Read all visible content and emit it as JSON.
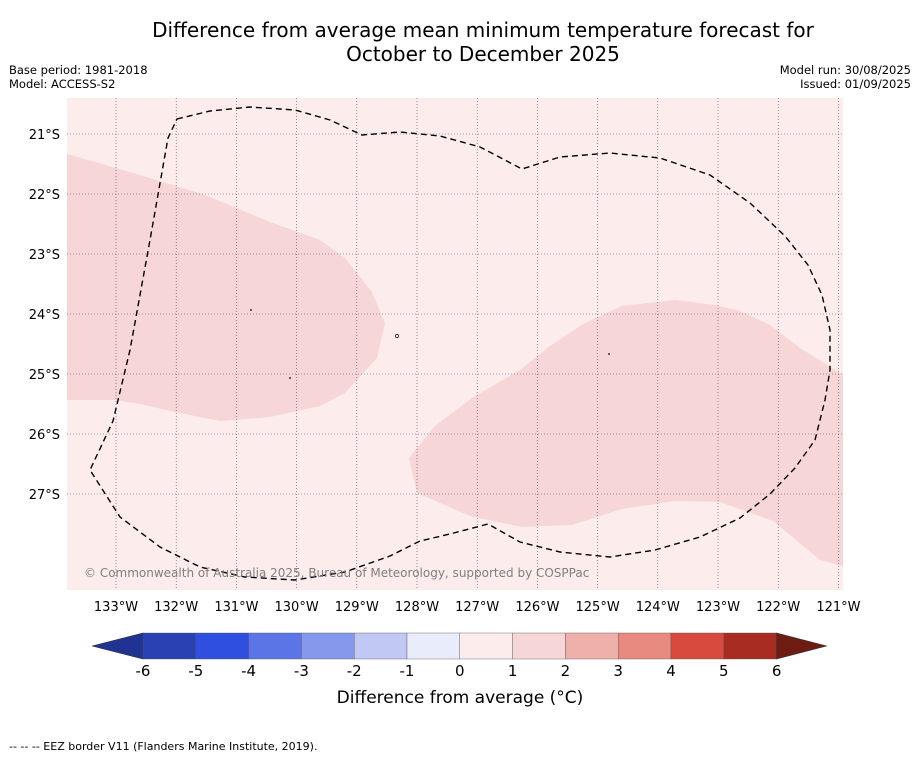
{
  "header": {
    "title_line1": "Difference from average mean minimum temperature forecast for",
    "title_line2": "October to December 2025",
    "base_period": "Base period: 1981-2018",
    "model": "Model: ACCESS-S2",
    "model_run": "Model run: 30/08/2025",
    "issued": "Issued: 01/09/2025"
  },
  "map": {
    "lon_labels": [
      "133°W",
      "132°W",
      "131°W",
      "130°W",
      "129°W",
      "128°W",
      "127°W",
      "126°W",
      "125°W",
      "124°W",
      "123°W",
      "122°W",
      "121°W"
    ],
    "lat_labels": [
      "21°S",
      "22°S",
      "23°S",
      "24°S",
      "25°S",
      "26°S",
      "27°S"
    ],
    "copyright": "© Commonwealth of Australia 2025, Bureau of Meteorology, supported by COSPPac",
    "background_category": "0 to 1",
    "anomaly_patches_category": "1 to 2"
  },
  "colorbar": {
    "ticks": [
      "-6",
      "-5",
      "-4",
      "-3",
      "-2",
      "-1",
      "0",
      "1",
      "2",
      "3",
      "4",
      "5",
      "6"
    ],
    "colors": [
      "#1f3393",
      "#2a41b4",
      "#2f4fe0",
      "#5b75e6",
      "#8698ec",
      "#c2c8f4",
      "#e9ecfb",
      "#fcecec",
      "#f6d6d6",
      "#eeb0ab",
      "#e88a80",
      "#d94a3e",
      "#a92c23",
      "#6e1b14"
    ],
    "title": "Difference from average (°C)"
  },
  "legend": {
    "eez_border": "--  --  -- EEZ border V11 (Flanders Marine Institute, 2019)."
  }
}
